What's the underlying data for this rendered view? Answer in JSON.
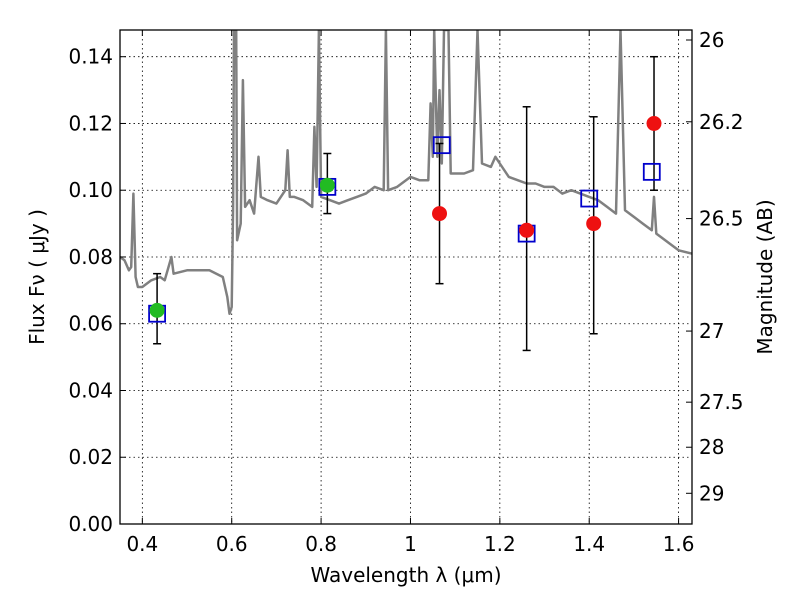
{
  "chart_data": {
    "type": "scatter",
    "xlabel": "Wavelength  λ (μm)",
    "ylabel": "Flux  Fν  ( μJy )",
    "ylabel_right": "Magnitude (AB)",
    "xlim": [
      0.35,
      1.63
    ],
    "ylim": [
      0.0,
      0.148
    ],
    "grid": true,
    "x_ticks": [
      0.4,
      0.6,
      0.8,
      1.0,
      1.2,
      1.4,
      1.6
    ],
    "x_tick_labels": [
      "0.4",
      "0.6",
      "0.8",
      "1",
      "1.2",
      "1.4",
      "1.6"
    ],
    "y_ticks": [
      0.0,
      0.02,
      0.04,
      0.06,
      0.08,
      0.1,
      0.12,
      0.14
    ],
    "y_tick_labels": [
      "0.00",
      "0.02",
      "0.04",
      "0.06",
      "0.08",
      "0.10",
      "0.12",
      "0.14"
    ],
    "right_ticks": [
      {
        "label": "26",
        "flux": 0.145
      },
      {
        "label": "26.2",
        "flux": 0.1205
      },
      {
        "label": "26.5",
        "flux": 0.0915
      },
      {
        "label": "27",
        "flux": 0.0578
      },
      {
        "label": "27.5",
        "flux": 0.0365
      },
      {
        "label": "28",
        "flux": 0.023
      },
      {
        "label": "29",
        "flux": 0.0092
      }
    ],
    "model_color": "#808080",
    "model_spectrum": [
      [
        0.35,
        0.08
      ],
      [
        0.36,
        0.079
      ],
      [
        0.37,
        0.076
      ],
      [
        0.375,
        0.077
      ],
      [
        0.38,
        0.099
      ],
      [
        0.385,
        0.074
      ],
      [
        0.39,
        0.071
      ],
      [
        0.4,
        0.071
      ],
      [
        0.42,
        0.073
      ],
      [
        0.44,
        0.074
      ],
      [
        0.45,
        0.073
      ],
      [
        0.465,
        0.08
      ],
      [
        0.47,
        0.075
      ],
      [
        0.5,
        0.076
      ],
      [
        0.52,
        0.076
      ],
      [
        0.55,
        0.076
      ],
      [
        0.58,
        0.074
      ],
      [
        0.59,
        0.068
      ],
      [
        0.595,
        0.063
      ],
      [
        0.6,
        0.065
      ],
      [
        0.603,
        0.095
      ],
      [
        0.605,
        0.148
      ],
      [
        0.61,
        0.148
      ],
      [
        0.612,
        0.085
      ],
      [
        0.62,
        0.09
      ],
      [
        0.625,
        0.133
      ],
      [
        0.63,
        0.095
      ],
      [
        0.64,
        0.097
      ],
      [
        0.65,
        0.093
      ],
      [
        0.66,
        0.11
      ],
      [
        0.665,
        0.098
      ],
      [
        0.68,
        0.097
      ],
      [
        0.7,
        0.096
      ],
      [
        0.72,
        0.1
      ],
      [
        0.725,
        0.112
      ],
      [
        0.73,
        0.098
      ],
      [
        0.74,
        0.098
      ],
      [
        0.76,
        0.097
      ],
      [
        0.78,
        0.095
      ],
      [
        0.785,
        0.119
      ],
      [
        0.79,
        0.101
      ],
      [
        0.795,
        0.148
      ],
      [
        0.8,
        0.098
      ],
      [
        0.82,
        0.097
      ],
      [
        0.84,
        0.096
      ],
      [
        0.86,
        0.097
      ],
      [
        0.88,
        0.098
      ],
      [
        0.9,
        0.099
      ],
      [
        0.92,
        0.101
      ],
      [
        0.94,
        0.1
      ],
      [
        0.945,
        0.148
      ],
      [
        0.95,
        0.1
      ],
      [
        0.97,
        0.101
      ],
      [
        0.99,
        0.103
      ],
      [
        1.0,
        0.104
      ],
      [
        1.02,
        0.103
      ],
      [
        1.04,
        0.103
      ],
      [
        1.045,
        0.126
      ],
      [
        1.05,
        0.11
      ],
      [
        1.053,
        0.148
      ],
      [
        1.06,
        0.11
      ],
      [
        1.065,
        0.13
      ],
      [
        1.07,
        0.108
      ],
      [
        1.075,
        0.148
      ],
      [
        1.085,
        0.148
      ],
      [
        1.09,
        0.105
      ],
      [
        1.1,
        0.105
      ],
      [
        1.12,
        0.105
      ],
      [
        1.14,
        0.106
      ],
      [
        1.15,
        0.148
      ],
      [
        1.16,
        0.108
      ],
      [
        1.18,
        0.107
      ],
      [
        1.19,
        0.11
      ],
      [
        1.2,
        0.108
      ],
      [
        1.22,
        0.104
      ],
      [
        1.24,
        0.103
      ],
      [
        1.26,
        0.102
      ],
      [
        1.28,
        0.102
      ],
      [
        1.3,
        0.101
      ],
      [
        1.32,
        0.101
      ],
      [
        1.34,
        0.099
      ],
      [
        1.36,
        0.1
      ],
      [
        1.38,
        0.099
      ],
      [
        1.4,
        0.098
      ],
      [
        1.42,
        0.097
      ],
      [
        1.44,
        0.095
      ],
      [
        1.46,
        0.093
      ],
      [
        1.47,
        0.148
      ],
      [
        1.48,
        0.094
      ],
      [
        1.5,
        0.092
      ],
      [
        1.52,
        0.09
      ],
      [
        1.54,
        0.088
      ],
      [
        1.545,
        0.098
      ],
      [
        1.55,
        0.087
      ],
      [
        1.56,
        0.086
      ],
      [
        1.58,
        0.084
      ],
      [
        1.6,
        0.082
      ],
      [
        1.63,
        0.081
      ]
    ],
    "series": [
      {
        "marker": "circle",
        "color": "#22bb22",
        "points": [
          {
            "x": 0.433,
            "y": 0.064,
            "err": [
              0.054,
              0.075
            ]
          },
          {
            "x": 0.814,
            "y": 0.1015,
            "err": [
              0.093,
              0.111
            ]
          }
        ]
      },
      {
        "marker": "circle",
        "color": "#ee1111",
        "points": [
          {
            "x": 1.065,
            "y": 0.093,
            "err": [
              0.072,
              0.114
            ]
          },
          {
            "x": 1.26,
            "y": 0.088,
            "err": [
              0.052,
              0.125
            ]
          },
          {
            "x": 1.41,
            "y": 0.09,
            "err": [
              0.057,
              0.122
            ]
          },
          {
            "x": 1.545,
            "y": 0.12,
            "err": [
              0.1,
              0.14
            ]
          }
        ]
      },
      {
        "marker": "square-open",
        "color": "#0000cc",
        "points": [
          {
            "x": 0.433,
            "y": 0.063
          },
          {
            "x": 0.814,
            "y": 0.101
          },
          {
            "x": 1.07,
            "y": 0.1135
          },
          {
            "x": 1.26,
            "y": 0.087
          },
          {
            "x": 1.4,
            "y": 0.0975
          },
          {
            "x": 1.54,
            "y": 0.1055
          }
        ]
      }
    ]
  }
}
